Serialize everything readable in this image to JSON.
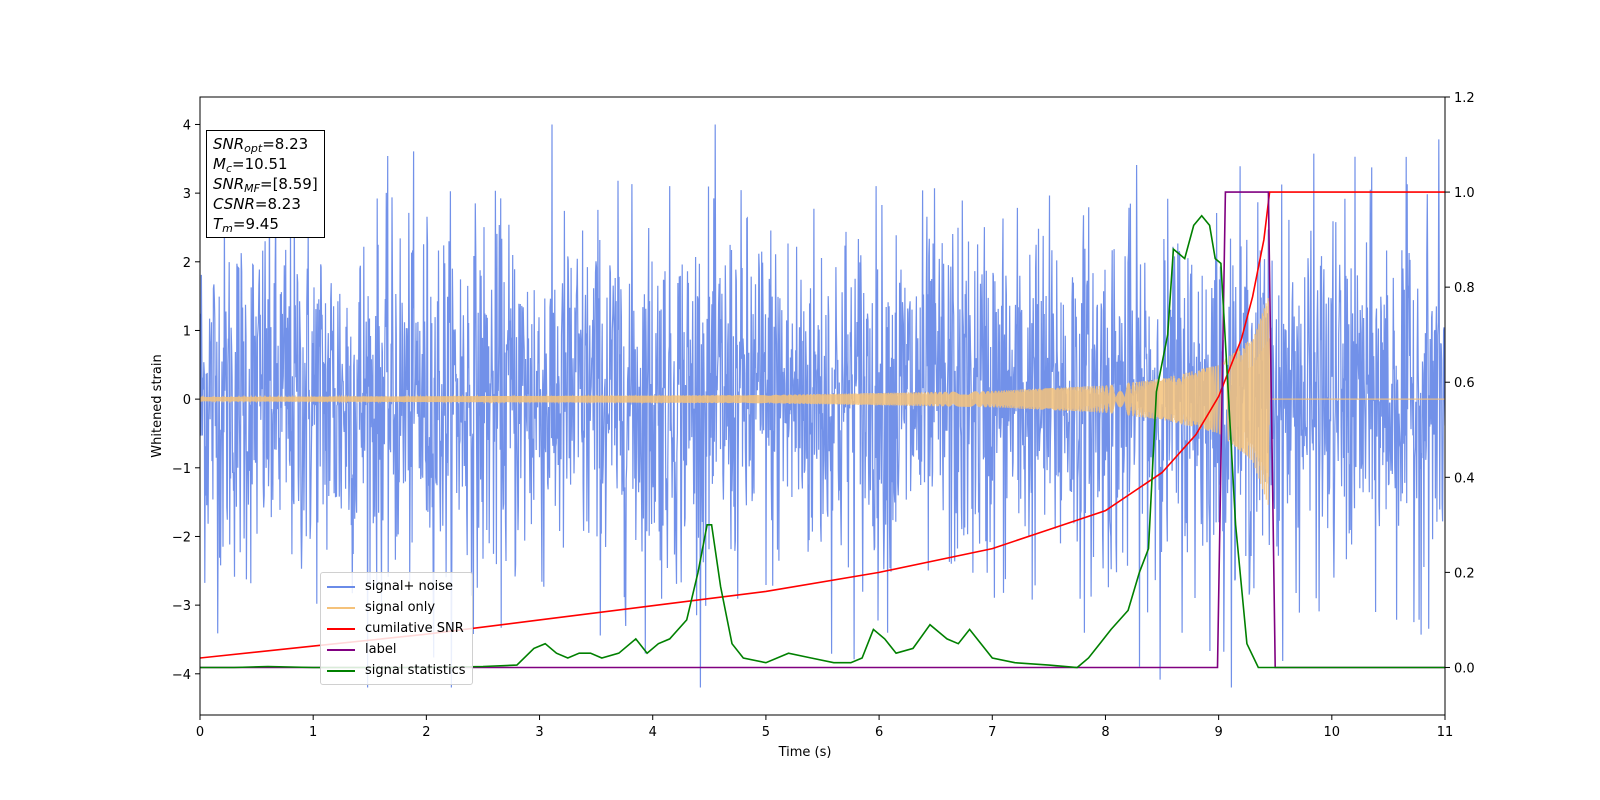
{
  "chart_data": {
    "type": "line",
    "xlabel": "Time (s)",
    "ylabel_left": "Whitened strain",
    "ylabel_right": "",
    "xlim": [
      0,
      11
    ],
    "ylim_left": [
      -4.6,
      4.4
    ],
    "ylim_right": [
      -0.1,
      1.2
    ],
    "x_ticks": [
      "0",
      "1",
      "2",
      "3",
      "4",
      "5",
      "6",
      "7",
      "8",
      "9",
      "10",
      "11"
    ],
    "y_left_ticks": [
      "4",
      "3",
      "2",
      "1",
      "0",
      "−1",
      "−2",
      "−3",
      "−4"
    ],
    "y_right_ticks": [
      "1.2",
      "1.0",
      "0.8",
      "0.6",
      "0.4",
      "0.2",
      "0.0"
    ],
    "grid": false,
    "legend_position": "lower-left",
    "annotation": {
      "snr_opt": "8.23",
      "mc": "10.51",
      "snr_mf": "[8.59]",
      "csnr": "8.23",
      "tm": "9.45"
    },
    "series": [
      {
        "name": "signal+ noise",
        "axis": "left",
        "color": "#6a8be8",
        "description_type": "noise",
        "envelope_min": -4.2,
        "envelope_max": 4.0,
        "typical_amplitude": 1.3
      },
      {
        "name": "signal only",
        "axis": "left",
        "color": "#f5c27a",
        "description_type": "chirp",
        "x_start": 0,
        "x_merger": 9.45,
        "amplitude_points": [
          [
            0,
            0.03
          ],
          [
            5,
            0.06
          ],
          [
            7,
            0.12
          ],
          [
            8,
            0.2
          ],
          [
            8.5,
            0.3
          ],
          [
            9.0,
            0.5
          ],
          [
            9.3,
            0.9
          ],
          [
            9.45,
            1.6
          ]
        ]
      },
      {
        "name": "cumilative SNR",
        "axis": "right",
        "color": "#ff0000",
        "x": [
          0,
          1,
          2,
          3,
          4,
          5,
          6,
          7,
          7.5,
          8,
          8.5,
          8.8,
          9.0,
          9.2,
          9.3,
          9.4,
          9.45,
          9.5,
          11
        ],
        "y": [
          0.02,
          0.045,
          0.07,
          0.1,
          0.13,
          0.16,
          0.2,
          0.25,
          0.29,
          0.33,
          0.41,
          0.49,
          0.57,
          0.69,
          0.78,
          0.9,
          1.0,
          1.0,
          1.0
        ]
      },
      {
        "name": "label",
        "axis": "right",
        "color": "#800080",
        "x": [
          0,
          8.99,
          9.06,
          9.44,
          9.5,
          11
        ],
        "y": [
          0.0,
          0.0,
          1.0,
          1.0,
          0.0,
          0.0
        ]
      },
      {
        "name": "signal statistics",
        "axis": "right",
        "color": "#008000",
        "x": [
          0,
          0.3,
          0.6,
          1.0,
          1.5,
          2.0,
          2.5,
          2.8,
          2.95,
          3.05,
          3.15,
          3.25,
          3.35,
          3.45,
          3.55,
          3.7,
          3.85,
          3.95,
          4.05,
          4.15,
          4.3,
          4.4,
          4.48,
          4.52,
          4.6,
          4.7,
          4.8,
          5.0,
          5.2,
          5.4,
          5.6,
          5.75,
          5.85,
          5.95,
          6.05,
          6.15,
          6.3,
          6.45,
          6.6,
          6.7,
          6.8,
          7.0,
          7.2,
          7.5,
          7.75,
          7.85,
          7.95,
          8.05,
          8.2,
          8.3,
          8.38,
          8.45,
          8.55,
          8.6,
          8.7,
          8.78,
          8.85,
          8.92,
          8.97,
          9.02,
          9.08,
          9.15,
          9.25,
          9.35,
          9.45,
          9.6,
          10.0,
          10.5,
          11.0
        ],
        "y": [
          0.0,
          0.0,
          0.002,
          0.0,
          0.0,
          0.0,
          0.002,
          0.005,
          0.04,
          0.05,
          0.03,
          0.02,
          0.03,
          0.03,
          0.02,
          0.03,
          0.06,
          0.03,
          0.05,
          0.06,
          0.1,
          0.2,
          0.3,
          0.3,
          0.17,
          0.05,
          0.02,
          0.01,
          0.03,
          0.02,
          0.01,
          0.01,
          0.02,
          0.08,
          0.06,
          0.03,
          0.04,
          0.09,
          0.06,
          0.05,
          0.08,
          0.02,
          0.01,
          0.005,
          0.0,
          0.02,
          0.05,
          0.08,
          0.12,
          0.2,
          0.25,
          0.58,
          0.7,
          0.88,
          0.86,
          0.93,
          0.95,
          0.93,
          0.86,
          0.85,
          0.6,
          0.3,
          0.05,
          0.0,
          0.0,
          0.0,
          0.0,
          0.0,
          0.0
        ]
      }
    ]
  }
}
